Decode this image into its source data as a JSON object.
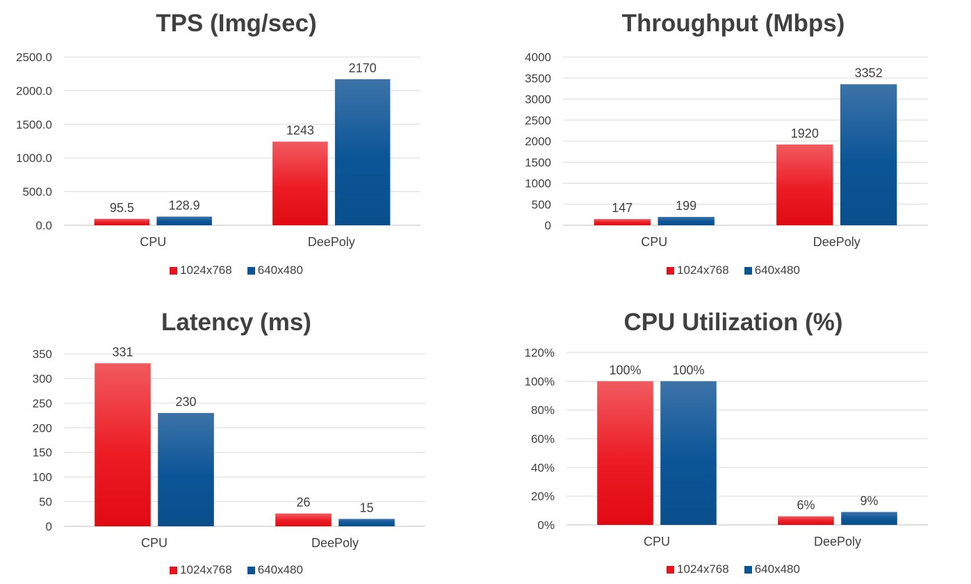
{
  "colors": {
    "series1": "#e8131c",
    "series2": "#0a5596",
    "grid": "#d9d9d9",
    "axis": "#bfbfbf"
  },
  "chart_data": [
    {
      "type": "bar",
      "title": "TPS (Img/sec)",
      "categories": [
        "CPU",
        "DeePoly"
      ],
      "series": [
        {
          "name": "1024x768",
          "values": [
            95.5,
            1243
          ],
          "labels": [
            "95.5",
            "1243"
          ]
        },
        {
          "name": "640x480",
          "values": [
            128.9,
            2170
          ],
          "labels": [
            "128.9",
            "2170"
          ]
        }
      ],
      "ylim": [
        0,
        2500
      ],
      "yticks": [
        "0.0",
        "500.0",
        "1000.0",
        "1500.0",
        "2000.0",
        "2500.0"
      ],
      "legend": "bottom",
      "grid": true
    },
    {
      "type": "bar",
      "title": "Throughput (Mbps)",
      "categories": [
        "CPU",
        "DeePoly"
      ],
      "series": [
        {
          "name": "1024x768",
          "values": [
            147,
            1920
          ],
          "labels": [
            "147",
            "1920"
          ]
        },
        {
          "name": "640x480",
          "values": [
            199,
            3352
          ],
          "labels": [
            "199",
            "3352"
          ]
        }
      ],
      "ylim": [
        0,
        4000
      ],
      "yticks": [
        "0",
        "500",
        "1000",
        "1500",
        "2000",
        "2500",
        "3000",
        "3500",
        "4000"
      ],
      "legend": "bottom",
      "grid": true
    },
    {
      "type": "bar",
      "title": "Latency (ms)",
      "categories": [
        "CPU",
        "DeePoly"
      ],
      "series": [
        {
          "name": "1024x768",
          "values": [
            331,
            26
          ],
          "labels": [
            "331",
            "26"
          ]
        },
        {
          "name": "640x480",
          "values": [
            230,
            15
          ],
          "labels": [
            "230",
            "15"
          ]
        }
      ],
      "ylim": [
        0,
        350
      ],
      "yticks": [
        "0",
        "50",
        "100",
        "150",
        "200",
        "250",
        "300",
        "350"
      ],
      "legend": "bottom",
      "grid": true
    },
    {
      "type": "bar",
      "title": "CPU Utilization (%)",
      "categories": [
        "CPU",
        "DeePoly"
      ],
      "series": [
        {
          "name": "1024x768",
          "values": [
            100,
            6
          ],
          "labels": [
            "100%",
            "6%"
          ]
        },
        {
          "name": "640x480",
          "values": [
            100,
            9
          ],
          "labels": [
            "100%",
            "9%"
          ]
        }
      ],
      "ylim": [
        0,
        120
      ],
      "yticks": [
        "0%",
        "20%",
        "40%",
        "60%",
        "80%",
        "100%",
        "120%"
      ],
      "legend": "bottom",
      "grid": true
    }
  ]
}
